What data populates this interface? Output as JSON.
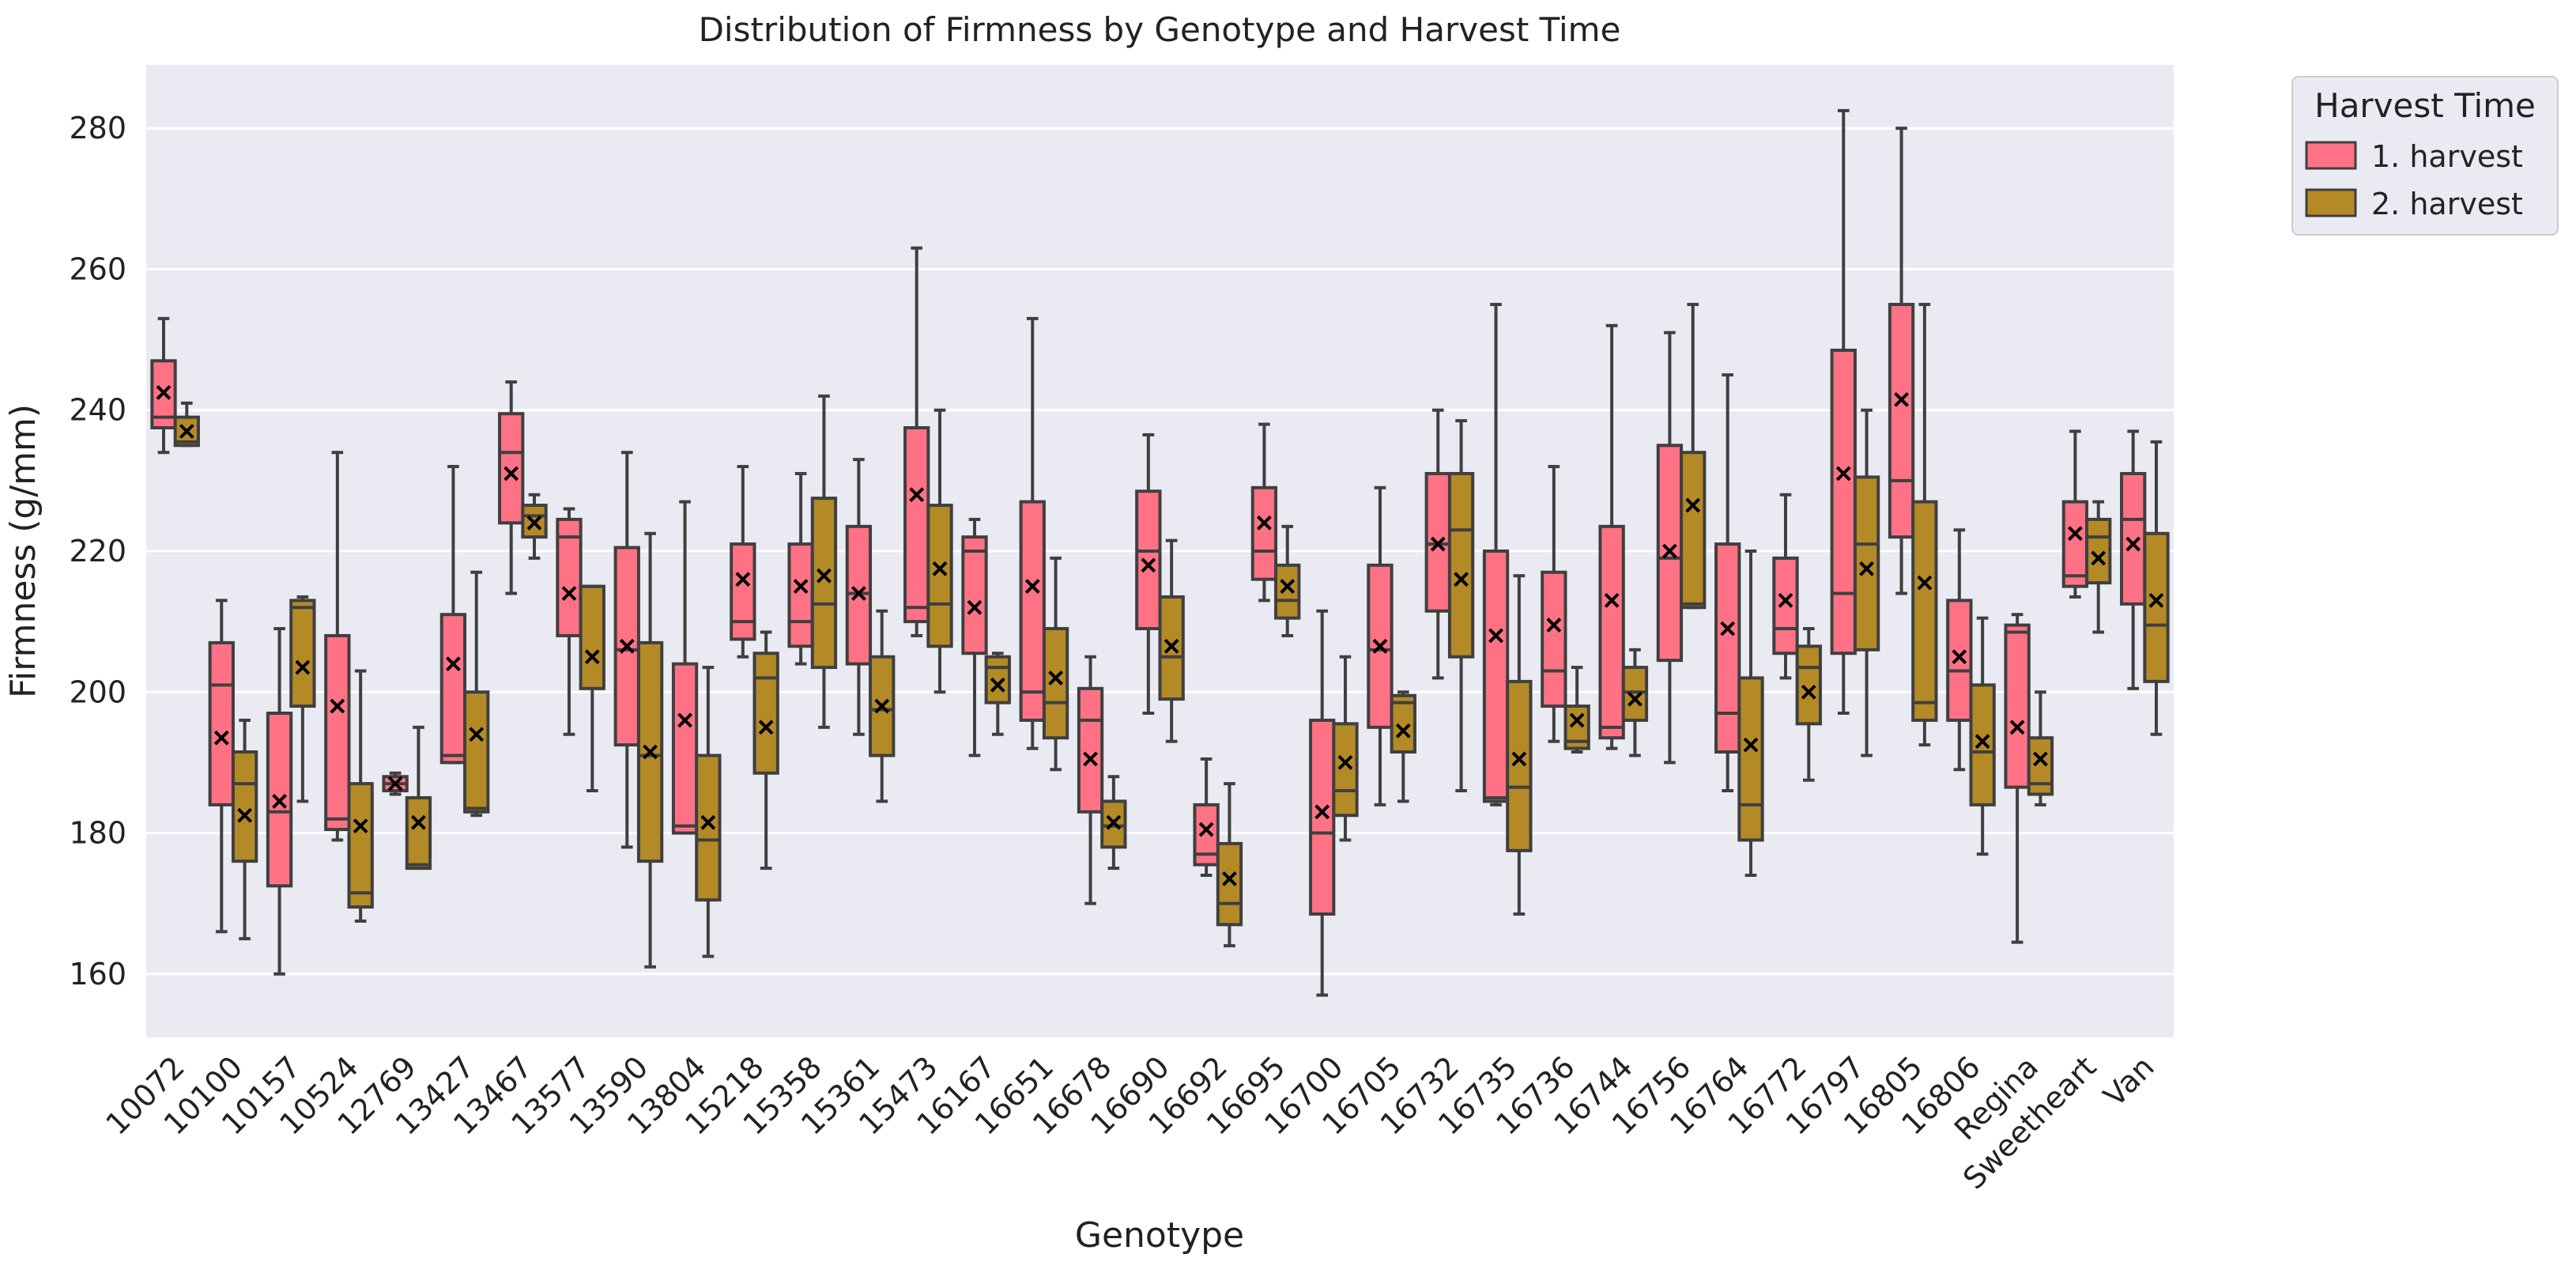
{
  "colors": {
    "background": "#eaeaf2",
    "grid": "#ffffff",
    "whisker": "#3f3f3f",
    "mean_marker": "#000000",
    "harvest1": "#ff7285",
    "harvest2": "#b38a26"
  },
  "chart_data": {
    "type": "box",
    "title": "Distribution of Firmness by Genotype and Harvest Time",
    "xlabel": "Genotype",
    "ylabel": "Firmness (g/mm)",
    "ylim": [
      151,
      289
    ],
    "yticks": [
      160,
      180,
      200,
      220,
      240,
      260,
      280
    ],
    "grid": true,
    "legend": {
      "title": "Harvest Time",
      "position": "outside top-right",
      "entries": [
        "1. harvest",
        "2. harvest"
      ]
    },
    "categories": [
      "10072",
      "10100",
      "10157",
      "10524",
      "12769",
      "13427",
      "13467",
      "13577",
      "13590",
      "13804",
      "15218",
      "15358",
      "15361",
      "15473",
      "16167",
      "16651",
      "16678",
      "16690",
      "16692",
      "16695",
      "16700",
      "16705",
      "16732",
      "16735",
      "16736",
      "16744",
      "16756",
      "16764",
      "16772",
      "16797",
      "16805",
      "16806",
      "Regina",
      "Sweetheart",
      "Van"
    ],
    "series": [
      {
        "name": "1. harvest",
        "color": "#ff7285",
        "boxes": [
          {
            "whisker_low": 234,
            "q1": 237.5,
            "median": 239,
            "q3": 247,
            "whisker_high": 253,
            "mean": 242.5
          },
          {
            "whisker_low": 166,
            "q1": 184,
            "median": 201,
            "q3": 207,
            "whisker_high": 213,
            "mean": 193.5
          },
          {
            "whisker_low": 160,
            "q1": 172.5,
            "median": 183,
            "q3": 197,
            "whisker_high": 209,
            "mean": 184.5
          },
          {
            "whisker_low": 179,
            "q1": 180.5,
            "median": 182,
            "q3": 208,
            "whisker_high": 234,
            "mean": 198
          },
          {
            "whisker_low": 185.5,
            "q1": 186,
            "median": 187,
            "q3": 188,
            "whisker_high": 188.5,
            "mean": 187
          },
          {
            "whisker_low": 190,
            "q1": 190,
            "median": 191,
            "q3": 211,
            "whisker_high": 232,
            "mean": 204
          },
          {
            "whisker_low": 214,
            "q1": 224,
            "median": 234,
            "q3": 239.5,
            "whisker_high": 244,
            "mean": 231
          },
          {
            "whisker_low": 194,
            "q1": 208,
            "median": 222,
            "q3": 224.5,
            "whisker_high": 226,
            "mean": 214
          },
          {
            "whisker_low": 178,
            "q1": 192.5,
            "median": 206,
            "q3": 220.5,
            "whisker_high": 234,
            "mean": 206.5
          },
          {
            "whisker_low": 180,
            "q1": 180,
            "median": 181,
            "q3": 204,
            "whisker_high": 227,
            "mean": 196
          },
          {
            "whisker_low": 205,
            "q1": 207.5,
            "median": 210,
            "q3": 221,
            "whisker_high": 232,
            "mean": 216
          },
          {
            "whisker_low": 204,
            "q1": 206.5,
            "median": 210,
            "q3": 221,
            "whisker_high": 231,
            "mean": 215
          },
          {
            "whisker_low": 194,
            "q1": 204,
            "median": 214,
            "q3": 223.5,
            "whisker_high": 233,
            "mean": 214
          },
          {
            "whisker_low": 208,
            "q1": 210,
            "median": 212,
            "q3": 237.5,
            "whisker_high": 263,
            "mean": 228
          },
          {
            "whisker_low": 191,
            "q1": 205.5,
            "median": 220,
            "q3": 222,
            "whisker_high": 224.5,
            "mean": 212
          },
          {
            "whisker_low": 192,
            "q1": 196,
            "median": 200,
            "q3": 227,
            "whisker_high": 253,
            "mean": 215
          },
          {
            "whisker_low": 170,
            "q1": 183,
            "median": 196,
            "q3": 200.5,
            "whisker_high": 205,
            "mean": 190.5
          },
          {
            "whisker_low": 197,
            "q1": 209,
            "median": 220,
            "q3": 228.5,
            "whisker_high": 236.5,
            "mean": 218
          },
          {
            "whisker_low": 174,
            "q1": 175.5,
            "median": 177,
            "q3": 184,
            "whisker_high": 190.5,
            "mean": 180.5
          },
          {
            "whisker_low": 213,
            "q1": 216,
            "median": 220,
            "q3": 229,
            "whisker_high": 238,
            "mean": 224
          },
          {
            "whisker_low": 157,
            "q1": 168.5,
            "median": 180,
            "q3": 196,
            "whisker_high": 211.5,
            "mean": 183
          },
          {
            "whisker_low": 184,
            "q1": 195,
            "median": 206,
            "q3": 218,
            "whisker_high": 229,
            "mean": 206.5
          },
          {
            "whisker_low": 202,
            "q1": 211.5,
            "median": 221,
            "q3": 231,
            "whisker_high": 240,
            "mean": 221
          },
          {
            "whisker_low": 184,
            "q1": 184.5,
            "median": 185,
            "q3": 220,
            "whisker_high": 255,
            "mean": 208
          },
          {
            "whisker_low": 193,
            "q1": 198,
            "median": 203,
            "q3": 217,
            "whisker_high": 232,
            "mean": 209.5
          },
          {
            "whisker_low": 192,
            "q1": 193.5,
            "median": 195,
            "q3": 223.5,
            "whisker_high": 252,
            "mean": 213
          },
          {
            "whisker_low": 190,
            "q1": 204.5,
            "median": 219,
            "q3": 235,
            "whisker_high": 251,
            "mean": 220
          },
          {
            "whisker_low": 186,
            "q1": 191.5,
            "median": 197,
            "q3": 221,
            "whisker_high": 245,
            "mean": 209
          },
          {
            "whisker_low": 202,
            "q1": 205.5,
            "median": 209,
            "q3": 219,
            "whisker_high": 228,
            "mean": 213
          },
          {
            "whisker_low": 197,
            "q1": 205.5,
            "median": 214,
            "q3": 248.5,
            "whisker_high": 282.5,
            "mean": 231
          },
          {
            "whisker_low": 214,
            "q1": 222,
            "median": 230,
            "q3": 255,
            "whisker_high": 280,
            "mean": 241.5
          },
          {
            "whisker_low": 189,
            "q1": 196,
            "median": 203,
            "q3": 213,
            "whisker_high": 223,
            "mean": 205
          },
          {
            "whisker_low": 164.5,
            "q1": 186.5,
            "median": 208.5,
            "q3": 209.5,
            "whisker_high": 211,
            "mean": 195
          },
          {
            "whisker_low": 213.5,
            "q1": 215,
            "median": 216.5,
            "q3": 227,
            "whisker_high": 237,
            "mean": 222.5
          },
          {
            "whisker_low": 200.5,
            "q1": 212.5,
            "median": 224.5,
            "q3": 231,
            "whisker_high": 237,
            "mean": 221
          }
        ]
      },
      {
        "name": "2. harvest",
        "color": "#b38a26",
        "boxes": [
          {
            "whisker_low": 235,
            "q1": 235,
            "median": 235.5,
            "q3": 239,
            "whisker_high": 241,
            "mean": 237
          },
          {
            "whisker_low": 165,
            "q1": 176,
            "median": 187,
            "q3": 191.5,
            "whisker_high": 196,
            "mean": 182.5
          },
          {
            "whisker_low": 184.5,
            "q1": 198,
            "median": 212,
            "q3": 213,
            "whisker_high": 213.5,
            "mean": 203.5
          },
          {
            "whisker_low": 167.5,
            "q1": 169.5,
            "median": 171.5,
            "q3": 187,
            "whisker_high": 203,
            "mean": 181
          },
          {
            "whisker_low": 175,
            "q1": 175,
            "median": 175.5,
            "q3": 185,
            "whisker_high": 195,
            "mean": 181.5
          },
          {
            "whisker_low": 182.5,
            "q1": 183,
            "median": 183.5,
            "q3": 200,
            "whisker_high": 217,
            "mean": 194
          },
          {
            "whisker_low": 219,
            "q1": 222,
            "median": 225,
            "q3": 226.5,
            "whisker_high": 228,
            "mean": 224
          },
          {
            "whisker_low": 186,
            "q1": 200.5,
            "median": 215,
            "q3": 215,
            "whisker_high": 215,
            "mean": 205
          },
          {
            "whisker_low": 161,
            "q1": 176,
            "median": 191,
            "q3": 207,
            "whisker_high": 222.5,
            "mean": 191.5
          },
          {
            "whisker_low": 162.5,
            "q1": 170.5,
            "median": 179,
            "q3": 191,
            "whisker_high": 203.5,
            "mean": 181.5
          },
          {
            "whisker_low": 175,
            "q1": 188.5,
            "median": 202,
            "q3": 205.5,
            "whisker_high": 208.5,
            "mean": 195
          },
          {
            "whisker_low": 195,
            "q1": 203.5,
            "median": 212.5,
            "q3": 227.5,
            "whisker_high": 242,
            "mean": 216.5
          },
          {
            "whisker_low": 184.5,
            "q1": 191,
            "median": 197.5,
            "q3": 205,
            "whisker_high": 211.5,
            "mean": 198
          },
          {
            "whisker_low": 200,
            "q1": 206.5,
            "median": 212.5,
            "q3": 226.5,
            "whisker_high": 240,
            "mean": 217.5
          },
          {
            "whisker_low": 194,
            "q1": 198.5,
            "median": 203.5,
            "q3": 205,
            "whisker_high": 205.5,
            "mean": 201
          },
          {
            "whisker_low": 189,
            "q1": 193.5,
            "median": 198.5,
            "q3": 209,
            "whisker_high": 219,
            "mean": 202
          },
          {
            "whisker_low": 175,
            "q1": 178,
            "median": 181,
            "q3": 184.5,
            "whisker_high": 188,
            "mean": 181.5
          },
          {
            "whisker_low": 193,
            "q1": 199,
            "median": 205,
            "q3": 213.5,
            "whisker_high": 221.5,
            "mean": 206.5
          },
          {
            "whisker_low": 164,
            "q1": 167,
            "median": 170,
            "q3": 178.5,
            "whisker_high": 187,
            "mean": 173.5
          },
          {
            "whisker_low": 208,
            "q1": 210.5,
            "median": 213,
            "q3": 218,
            "whisker_high": 223.5,
            "mean": 215
          },
          {
            "whisker_low": 179,
            "q1": 182.5,
            "median": 186,
            "q3": 195.5,
            "whisker_high": 205,
            "mean": 190
          },
          {
            "whisker_low": 184.5,
            "q1": 191.5,
            "median": 198.5,
            "q3": 199.5,
            "whisker_high": 200,
            "mean": 194.5
          },
          {
            "whisker_low": 186,
            "q1": 205,
            "median": 223,
            "q3": 231,
            "whisker_high": 238.5,
            "mean": 216
          },
          {
            "whisker_low": 168.5,
            "q1": 177.5,
            "median": 186.5,
            "q3": 201.5,
            "whisker_high": 216.5,
            "mean": 190.5
          },
          {
            "whisker_low": 191.5,
            "q1": 192,
            "median": 193,
            "q3": 198,
            "whisker_high": 203.5,
            "mean": 196
          },
          {
            "whisker_low": 191,
            "q1": 196,
            "median": 200,
            "q3": 203.5,
            "whisker_high": 206,
            "mean": 199
          },
          {
            "whisker_low": 212,
            "q1": 212,
            "median": 212.5,
            "q3": 234,
            "whisker_high": 255,
            "mean": 226.5
          },
          {
            "whisker_low": 174,
            "q1": 179,
            "median": 184,
            "q3": 202,
            "whisker_high": 220,
            "mean": 192.5
          },
          {
            "whisker_low": 187.5,
            "q1": 195.5,
            "median": 203.5,
            "q3": 206.5,
            "whisker_high": 209,
            "mean": 200
          },
          {
            "whisker_low": 191,
            "q1": 206,
            "median": 221,
            "q3": 230.5,
            "whisker_high": 240,
            "mean": 217.5
          },
          {
            "whisker_low": 192.5,
            "q1": 196,
            "median": 198.5,
            "q3": 227,
            "whisker_high": 255,
            "mean": 215.5
          },
          {
            "whisker_low": 177,
            "q1": 184,
            "median": 191.5,
            "q3": 201,
            "whisker_high": 210.5,
            "mean": 193
          },
          {
            "whisker_low": 184,
            "q1": 185.5,
            "median": 187,
            "q3": 193.5,
            "whisker_high": 200,
            "mean": 190.5
          },
          {
            "whisker_low": 208.5,
            "q1": 215.5,
            "median": 222,
            "q3": 224.5,
            "whisker_high": 227,
            "mean": 219
          },
          {
            "whisker_low": 194,
            "q1": 201.5,
            "median": 209.5,
            "q3": 222.5,
            "whisker_high": 235.5,
            "mean": 213
          }
        ]
      }
    ]
  }
}
